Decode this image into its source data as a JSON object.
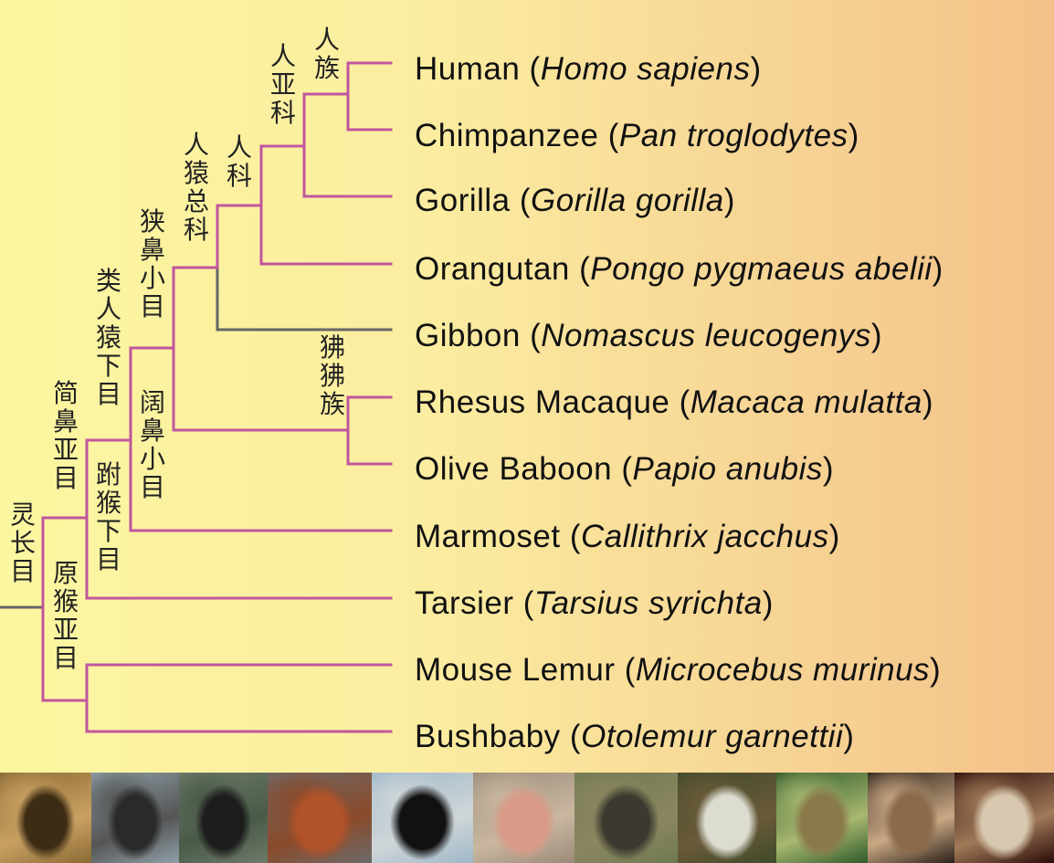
{
  "taxa": [
    {
      "common": "Human",
      "latin": "Homo sapiens"
    },
    {
      "common": "Chimpanzee",
      "latin": "Pan troglodytes"
    },
    {
      "common": "Gorilla",
      "latin": "Gorilla gorilla"
    },
    {
      "common": "Orangutan",
      "latin": "Pongo pygmaeus abelii"
    },
    {
      "common": "Gibbon",
      "latin": "Nomascus leucogenys"
    },
    {
      "common": "Rhesus Macaque",
      "latin": "Macaca mulatta"
    },
    {
      "common": "Olive Baboon",
      "latin": "Papio anubis"
    },
    {
      "common": "Marmoset",
      "latin": "Callithrix jacchus"
    },
    {
      "common": "Tarsier",
      "latin": "Tarsius syrichta"
    },
    {
      "common": "Mouse Lemur",
      "latin": "Microcebus murinus"
    },
    {
      "common": "Bushbaby",
      "latin": "Otolemur garnettii"
    }
  ],
  "clade_labels": {
    "hominini": "人族",
    "homininae": "人亚科",
    "hominidae": "人科",
    "hominoidea": "人猿总科",
    "catarrhini": "狭鼻小目",
    "papionini": "狒狒族",
    "platyrrhini": "阔鼻小目",
    "simiiformes": "类人猿下目",
    "tarsiiformes": "跗猴下目",
    "haplorhini": "简鼻亚目",
    "strepsirrhini": "原猴亚目",
    "primates": "灵长目"
  },
  "colors": {
    "branch": "#c0569e",
    "gibbon_branch": "#666666",
    "root_branch": "#666666",
    "text": "#111111"
  },
  "photos": [
    {
      "subject": "Human",
      "colors": [
        "#8a6a34",
        "#3d2c14",
        "#c9a062"
      ]
    },
    {
      "subject": "Chimpanzee",
      "colors": [
        "#8fa0a8",
        "#2a2a2a",
        "#555555"
      ]
    },
    {
      "subject": "Gorilla",
      "colors": [
        "#6e7a6a",
        "#1d1d1d",
        "#4a5a48"
      ]
    },
    {
      "subject": "Orangutan",
      "colors": [
        "#6b6b6b",
        "#b0522a",
        "#8a4a2a"
      ]
    },
    {
      "subject": "Gibbon",
      "colors": [
        "#9fb8c8",
        "#111111",
        "#cfd6d8"
      ]
    },
    {
      "subject": "Rhesus Macaque",
      "colors": [
        "#9a8a78",
        "#d99a88",
        "#c9b7a0"
      ]
    },
    {
      "subject": "Olive Baboon",
      "colors": [
        "#6f7a52",
        "#3c3a30",
        "#8b8660"
      ]
    },
    {
      "subject": "Marmoset",
      "colors": [
        "#3f4a2a",
        "#dcdcd0",
        "#6a5a3a"
      ]
    },
    {
      "subject": "Tarsier",
      "colors": [
        "#2f5a2a",
        "#8a7a4a",
        "#a8b870"
      ]
    },
    {
      "subject": "Mouse Lemur",
      "colors": [
        "#2a2018",
        "#8a6a4a",
        "#c9a884"
      ]
    },
    {
      "subject": "Bushbaby",
      "colors": [
        "#2a0a08",
        "#d9c8b0",
        "#a07a58"
      ]
    }
  ]
}
